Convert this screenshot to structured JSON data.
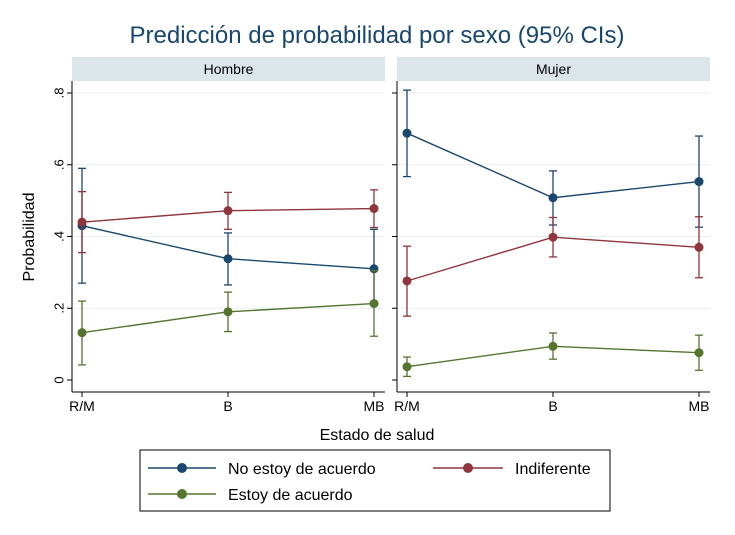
{
  "chart_data": {
    "type": "line",
    "title": "Predicción de probabilidad por sexo (95% CIs)",
    "xlabel": "Estado de salud",
    "ylabel": "Probabilidad",
    "categories": [
      "R/M",
      "B",
      "MB"
    ],
    "ylim": [
      0,
      0.85
    ],
    "yticks": [
      0,
      0.2,
      0.4,
      0.6,
      0.8
    ],
    "ytick_labels": [
      "0",
      ".2",
      ".4",
      ".6",
      ".8"
    ],
    "grid": true,
    "legend_position": "bottom",
    "colors": {
      "no_estoy": "#1a476f",
      "indiferente": "#90353b",
      "estoy": "#55752f",
      "panel_header": "#dce5ea",
      "grid": "#e8eef1",
      "title": "#1a476f"
    },
    "legend": [
      {
        "key": "no_estoy",
        "label": "No estoy de acuerdo"
      },
      {
        "key": "indiferente",
        "label": "Indiferente"
      },
      {
        "key": "estoy",
        "label": "Estoy de acuerdo"
      }
    ],
    "panels": [
      {
        "name": "Hombre",
        "series": [
          {
            "key": "no_estoy",
            "values": [
              0.43,
              0.338,
              0.31
            ],
            "lower": [
              0.27,
              0.265,
              0.21
            ],
            "upper": [
              0.59,
              0.41,
              0.42
            ]
          },
          {
            "key": "indiferente",
            "values": [
              0.44,
              0.472,
              0.478
            ],
            "lower": [
              0.355,
              0.42,
              0.425
            ],
            "upper": [
              0.525,
              0.523,
              0.53
            ]
          },
          {
            "key": "estoy",
            "values": [
              0.132,
              0.19,
              0.213
            ],
            "lower": [
              0.042,
              0.135,
              0.122
            ],
            "upper": [
              0.22,
              0.245,
              0.305
            ]
          }
        ]
      },
      {
        "name": "Mujer",
        "series": [
          {
            "key": "no_estoy",
            "values": [
              0.688,
              0.508,
              0.553
            ],
            "lower": [
              0.567,
              0.432,
              0.426
            ],
            "upper": [
              0.808,
              0.583,
              0.68
            ]
          },
          {
            "key": "indiferente",
            "values": [
              0.276,
              0.398,
              0.37
            ],
            "lower": [
              0.178,
              0.343,
              0.285
            ],
            "upper": [
              0.373,
              0.453,
              0.455
            ]
          },
          {
            "key": "estoy",
            "values": [
              0.037,
              0.094,
              0.076
            ],
            "lower": [
              0.01,
              0.058,
              0.027
            ],
            "upper": [
              0.064,
              0.131,
              0.125
            ]
          }
        ]
      }
    ]
  }
}
